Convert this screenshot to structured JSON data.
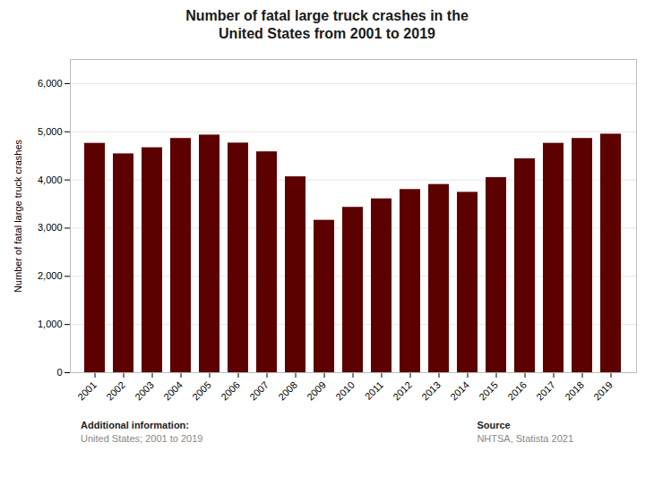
{
  "chart_data": {
    "type": "bar",
    "title": "Number of fatal large truck crashes in the\nUnited States from 2001 to 2019",
    "ylabel": "Number of fatal large truck crashes",
    "categories": [
      "2001",
      "2002",
      "2003",
      "2004",
      "2005",
      "2006",
      "2007",
      "2008",
      "2009",
      "2010",
      "2011",
      "2012",
      "2013",
      "2014",
      "2015",
      "2016",
      "2017",
      "2018",
      "2019"
    ],
    "values": [
      4760,
      4542,
      4669,
      4862,
      4932,
      4766,
      4584,
      4066,
      3163,
      3432,
      3608,
      3802,
      3906,
      3744,
      4050,
      4440,
      4761,
      4862,
      4951
    ],
    "color": "#5c0000",
    "ylim": [
      0,
      6500
    ],
    "yticks": [
      0,
      {
        "value": 1000,
        "label": "1,000"
      },
      {
        "value": 2000,
        "label": "2,000"
      },
      {
        "value": 3000,
        "label": "3,000"
      },
      {
        "value": 4000,
        "label": "4,000"
      },
      {
        "value": 5000,
        "label": "5,000"
      },
      {
        "value": 6000,
        "label": "6,000"
      }
    ],
    "grid": true,
    "annotations": [
      "Additional information:",
      "United States; 2001 to 2019",
      "Source",
      "NHTSA, Statista 2021"
    ]
  }
}
